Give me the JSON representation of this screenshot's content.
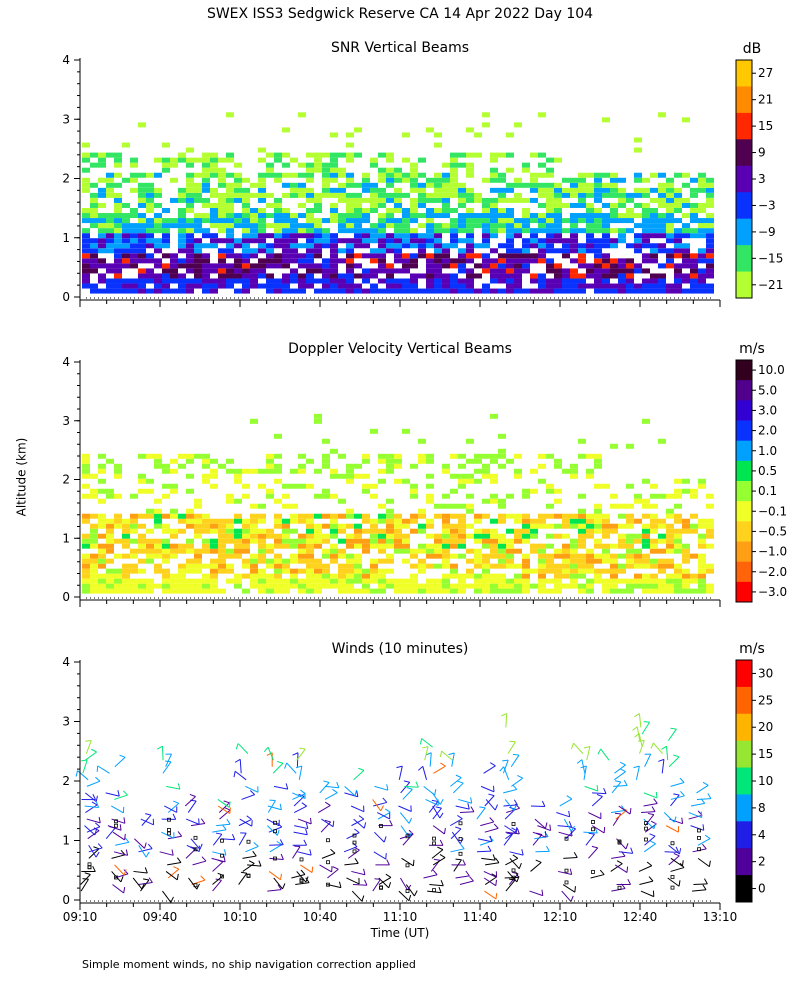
{
  "page_title": "SWEX ISS3 Sedgwick Reserve CA  14 Apr 2022 Day 104",
  "footnote": "Simple moment winds, no ship navigation correction applied",
  "chart_data": [
    {
      "type": "heatmap",
      "title": "SNR Vertical Beams",
      "ylabel": "Altitude (km)",
      "xlabel": "",
      "ylim": [
        0,
        4
      ],
      "yticks": [
        0,
        1,
        2,
        3,
        4
      ],
      "y_minor_step": 0.2,
      "xlim": [
        "09:10",
        "13:10"
      ],
      "xticks": [
        "09:10",
        "09:40",
        "10:10",
        "10:40",
        "11:10",
        "11:40",
        "12:10",
        "12:40",
        "13:10"
      ],
      "x_tick_labels_shown": false,
      "grid": false,
      "legend_placement": "right",
      "colorbar": {
        "unit": "dB",
        "labels": [
          "27",
          "21",
          "15",
          "9",
          "3",
          "−3",
          "−9",
          "−15",
          "−21"
        ],
        "colors": [
          "#ffc800",
          "#ff8c00",
          "#ff2800",
          "#500050",
          "#5a00b4",
          "#0a32ff",
          "#00a0ff",
          "#32e664",
          "#b4ff32"
        ]
      }
    },
    {
      "type": "heatmap",
      "title": "Doppler Velocity Vertical Beams",
      "ylabel": "Altitude (km)",
      "xlabel": "",
      "ylim": [
        0,
        4
      ],
      "yticks": [
        0,
        1,
        2,
        3,
        4
      ],
      "y_minor_step": 0.2,
      "xlim": [
        "09:10",
        "13:10"
      ],
      "xticks": [
        "09:10",
        "09:40",
        "10:10",
        "10:40",
        "11:10",
        "11:40",
        "12:10",
        "12:40",
        "13:10"
      ],
      "x_tick_labels_shown": false,
      "grid": false,
      "legend_placement": "right",
      "colorbar": {
        "unit": "m/s",
        "labels": [
          "10.0",
          "5.0",
          "3.0",
          "2.0",
          "1.0",
          "0.5",
          "0.1",
          "−0.1",
          "−0.5",
          "−1.0",
          "−2.0",
          "−3.0"
        ],
        "colors": [
          "#32001e",
          "#50008c",
          "#3200d2",
          "#0a32ff",
          "#00a0ff",
          "#00e650",
          "#96ff32",
          "#f0ff28",
          "#ffd21e",
          "#ffa014",
          "#ff640a",
          "#ff0000"
        ]
      }
    },
    {
      "type": "scatter",
      "title": "Winds (10 minutes)",
      "ylabel": "Altitude (km)",
      "xlabel": "Time (UT)",
      "ylim": [
        0,
        4
      ],
      "yticks": [
        0,
        1,
        2,
        3,
        4
      ],
      "y_minor_step": 0.2,
      "xlim": [
        "09:10",
        "13:10"
      ],
      "xticks": [
        "09:10",
        "09:40",
        "10:10",
        "10:40",
        "11:10",
        "11:40",
        "12:10",
        "12:40",
        "13:10"
      ],
      "x_tick_labels_shown": true,
      "grid": false,
      "legend_placement": "right",
      "colorbar": {
        "unit": "m/s",
        "labels": [
          "30",
          "25",
          "20",
          "15",
          "10",
          "8",
          "4",
          "2",
          "0"
        ],
        "colors": [
          "#ff0000",
          "#ff6400",
          "#ffb400",
          "#96e632",
          "#00e678",
          "#00a0ff",
          "#1e1ee6",
          "#50009b",
          "#000000"
        ]
      }
    }
  ]
}
